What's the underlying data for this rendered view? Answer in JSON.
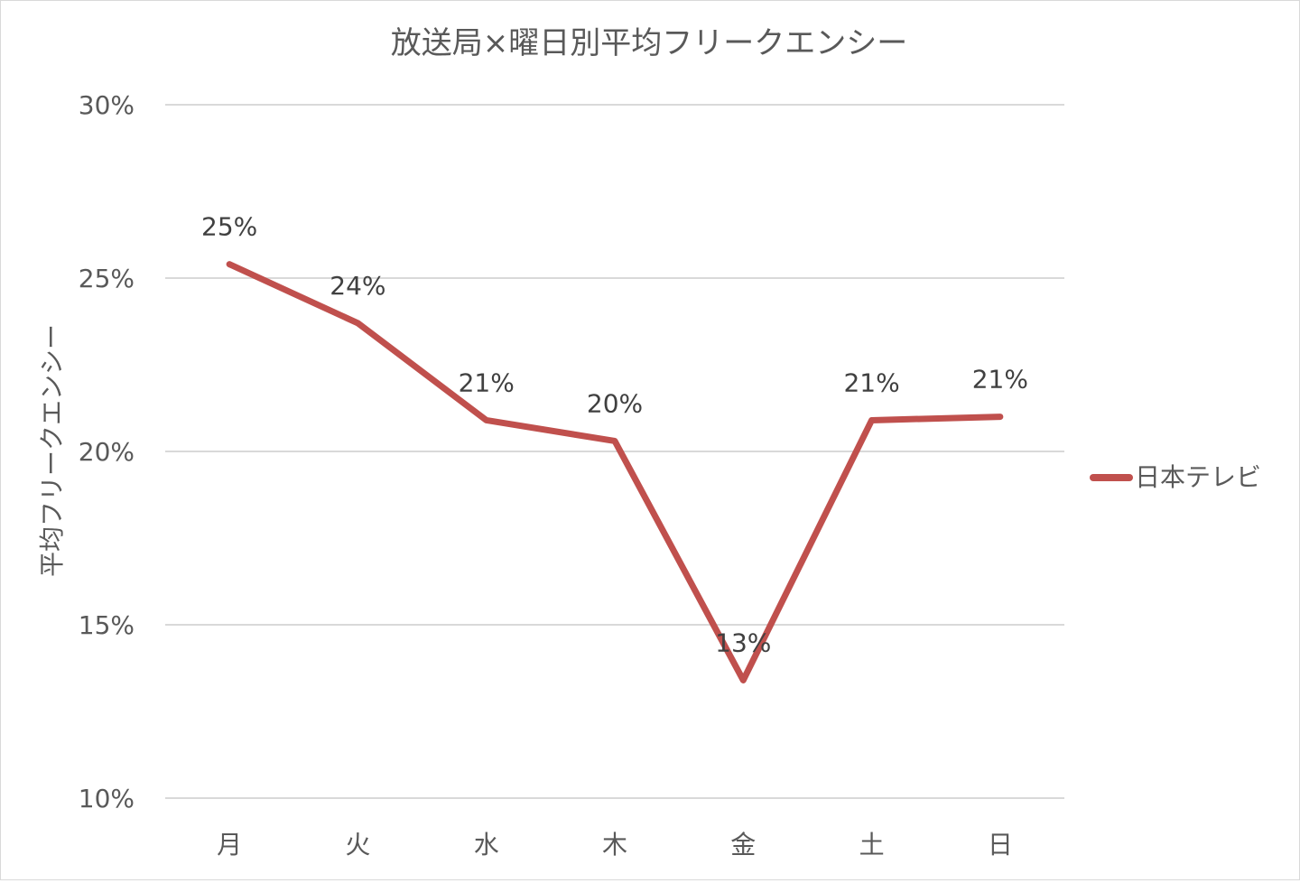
{
  "chart_data": {
    "type": "line",
    "title": "放送局×曜日別平均フリークエンシー",
    "xlabel": "",
    "ylabel": "平均フリークエンシー",
    "categories": [
      "月",
      "火",
      "水",
      "木",
      "金",
      "土",
      "日"
    ],
    "series": [
      {
        "name": "日本テレビ",
        "color": "#c0504d",
        "values": [
          0.254,
          0.237,
          0.209,
          0.203,
          0.134,
          0.209,
          0.21
        ],
        "labels": [
          "25%",
          "24%",
          "21%",
          "20%",
          "13%",
          "21%",
          "21%"
        ]
      }
    ],
    "ylim": [
      0.1,
      0.3
    ],
    "yticks": [
      0.1,
      0.15,
      0.2,
      0.25,
      0.3
    ],
    "ytick_labels": [
      "10%",
      "15%",
      "20%",
      "25%",
      "30%"
    ],
    "grid": true,
    "legend_position": "right"
  }
}
